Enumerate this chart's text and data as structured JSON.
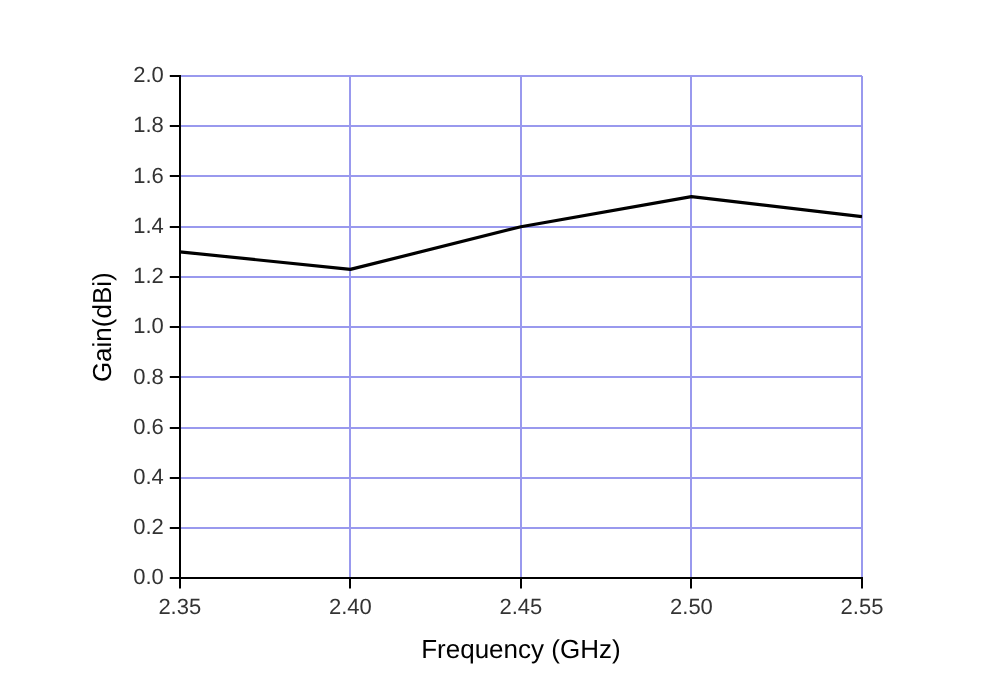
{
  "chart_data": {
    "type": "line",
    "xlabel": "Frequency (GHz)",
    "ylabel": "Gain(dBi)",
    "x": [
      2.35,
      2.4,
      2.45,
      2.5,
      2.55
    ],
    "series": [
      {
        "color": "#000000",
        "values": [
          1.3,
          1.23,
          1.4,
          1.52,
          1.44
        ]
      }
    ],
    "xlim": [
      2.35,
      2.55
    ],
    "xticks": [
      {
        "value": 2.35,
        "label": "2.35"
      },
      {
        "value": 2.4,
        "label": "2.40"
      },
      {
        "value": 2.45,
        "label": "2.45"
      },
      {
        "value": 2.5,
        "label": "2.50"
      },
      {
        "value": 2.55,
        "label": "2.55"
      }
    ],
    "ylim": [
      0,
      2
    ],
    "yticks": [
      {
        "value": 0,
        "label": "0.0"
      },
      {
        "value": 0.2,
        "label": "0.2"
      },
      {
        "value": 0.4,
        "label": "0.4"
      },
      {
        "value": 0.6,
        "label": "0.6"
      },
      {
        "value": 0.8,
        "label": "0.8"
      },
      {
        "value": 1,
        "label": "1.0"
      },
      {
        "value": 1.2,
        "label": "1.2"
      },
      {
        "value": 1.4,
        "label": "1.4"
      },
      {
        "value": 1.6,
        "label": "1.6"
      },
      {
        "value": 1.8,
        "label": "1.8"
      },
      {
        "value": 2,
        "label": "2.0"
      }
    ],
    "grid": true,
    "legend": false,
    "marker": "none",
    "line_style": "solid"
  }
}
